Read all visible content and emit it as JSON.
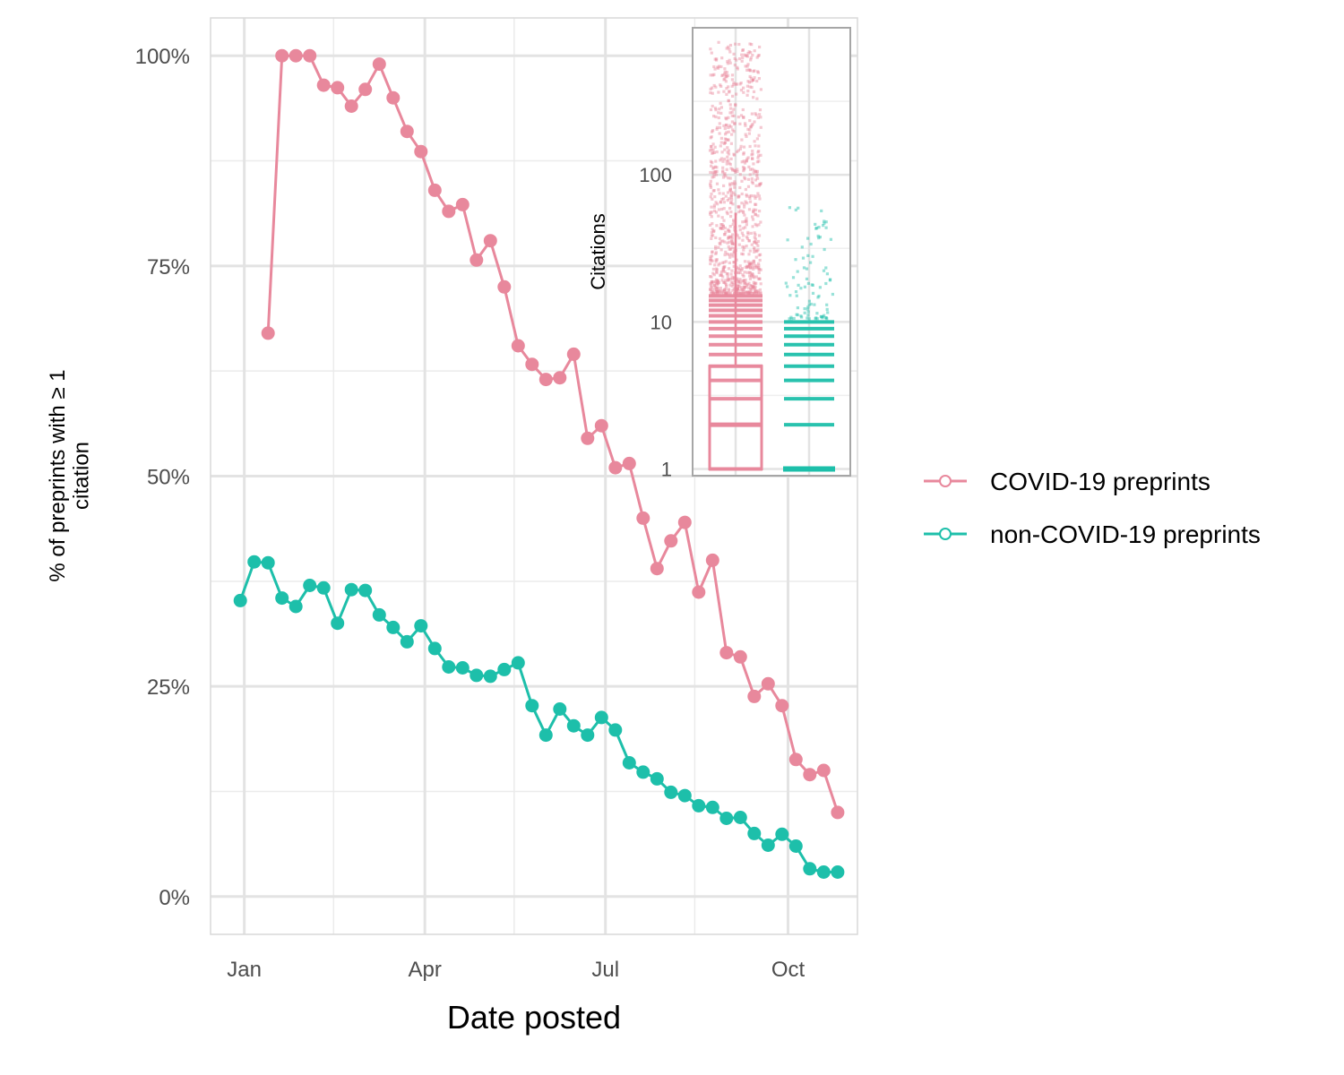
{
  "chart_data": [
    {
      "type": "line",
      "title": "",
      "xlabel": "Date posted",
      "ylabel": "% of preprints with ≥ 1 citation",
      "x_ticks": [
        "Jan",
        "Apr",
        "Jul",
        "Oct"
      ],
      "y_ticks": [
        "0%",
        "25%",
        "50%",
        "75%",
        "100%"
      ],
      "ylim": [
        -4.5,
        104.5
      ],
      "grid": true,
      "legend_position": "right",
      "series": [
        {
          "name": "COVID-19 preprints",
          "color": "#E8889C",
          "points": [
            [
              "2020-01-13",
              67
            ],
            [
              "2020-01-20",
              100
            ],
            [
              "2020-01-27",
              100
            ],
            [
              "2020-02-03",
              100
            ],
            [
              "2020-02-10",
              96.5
            ],
            [
              "2020-02-17",
              96.2
            ],
            [
              "2020-02-24",
              94
            ],
            [
              "2020-03-02",
              96
            ],
            [
              "2020-03-09",
              99
            ],
            [
              "2020-03-16",
              95
            ],
            [
              "2020-03-23",
              91
            ],
            [
              "2020-03-30",
              88.6
            ],
            [
              "2020-04-06",
              84
            ],
            [
              "2020-04-13",
              81.5
            ],
            [
              "2020-04-20",
              82.3
            ],
            [
              "2020-04-27",
              75.7
            ],
            [
              "2020-05-04",
              78
            ],
            [
              "2020-05-11",
              72.5
            ],
            [
              "2020-05-18",
              65.5
            ],
            [
              "2020-05-25",
              63.3
            ],
            [
              "2020-06-01",
              61.5
            ],
            [
              "2020-06-08",
              61.7
            ],
            [
              "2020-06-15",
              64.5
            ],
            [
              "2020-06-22",
              54.5
            ],
            [
              "2020-06-29",
              56
            ],
            [
              "2020-07-06",
              51
            ],
            [
              "2020-07-13",
              51.5
            ],
            [
              "2020-07-20",
              45
            ],
            [
              "2020-07-27",
              39
            ],
            [
              "2020-08-03",
              42.3
            ],
            [
              "2020-08-10",
              44.5
            ],
            [
              "2020-08-17",
              36.2
            ],
            [
              "2020-08-24",
              40
            ],
            [
              "2020-08-31",
              29
            ],
            [
              "2020-09-07",
              28.5
            ],
            [
              "2020-09-14",
              23.8
            ],
            [
              "2020-09-21",
              25.3
            ],
            [
              "2020-09-28",
              22.7
            ],
            [
              "2020-10-05",
              16.3
            ],
            [
              "2020-10-12",
              14.5
            ],
            [
              "2020-10-19",
              15
            ],
            [
              "2020-10-26",
              10
            ]
          ]
        },
        {
          "name": "non-COVID-19 preprints",
          "color": "#1DBFAA",
          "points": [
            [
              "2019-12-30",
              35.2
            ],
            [
              "2020-01-06",
              39.8
            ],
            [
              "2020-01-13",
              39.7
            ],
            [
              "2020-01-20",
              35.5
            ],
            [
              "2020-01-27",
              34.5
            ],
            [
              "2020-02-03",
              37
            ],
            [
              "2020-02-10",
              36.7
            ],
            [
              "2020-02-17",
              32.5
            ],
            [
              "2020-02-24",
              36.5
            ],
            [
              "2020-03-02",
              36.4
            ],
            [
              "2020-03-09",
              33.5
            ],
            [
              "2020-03-16",
              32
            ],
            [
              "2020-03-23",
              30.3
            ],
            [
              "2020-03-30",
              32.2
            ],
            [
              "2020-04-06",
              29.5
            ],
            [
              "2020-04-13",
              27.3
            ],
            [
              "2020-04-20",
              27.2
            ],
            [
              "2020-04-27",
              26.3
            ],
            [
              "2020-05-04",
              26.2
            ],
            [
              "2020-05-11",
              27
            ],
            [
              "2020-05-18",
              27.8
            ],
            [
              "2020-05-25",
              22.7
            ],
            [
              "2020-06-01",
              19.2
            ],
            [
              "2020-06-08",
              22.3
            ],
            [
              "2020-06-15",
              20.3
            ],
            [
              "2020-06-22",
              19.2
            ],
            [
              "2020-06-29",
              21.3
            ],
            [
              "2020-07-06",
              19.8
            ],
            [
              "2020-07-13",
              15.9
            ],
            [
              "2020-07-20",
              14.8
            ],
            [
              "2020-07-27",
              14
            ],
            [
              "2020-08-03",
              12.4
            ],
            [
              "2020-08-10",
              12
            ],
            [
              "2020-08-17",
              10.8
            ],
            [
              "2020-08-24",
              10.6
            ],
            [
              "2020-08-31",
              9.3
            ],
            [
              "2020-09-07",
              9.4
            ],
            [
              "2020-09-14",
              7.5
            ],
            [
              "2020-09-21",
              6.1
            ],
            [
              "2020-09-28",
              7.4
            ],
            [
              "2020-10-05",
              6
            ],
            [
              "2020-10-12",
              3.3
            ],
            [
              "2020-10-19",
              2.9
            ],
            [
              "2020-10-26",
              2.9
            ]
          ]
        }
      ]
    },
    {
      "type": "box",
      "title": "",
      "ylabel": "Citations",
      "y_scale": "log10",
      "y_ticks": [
        "1",
        "10",
        "100"
      ],
      "ylim": [
        0.9,
        1000
      ],
      "categories": [
        "COVID-19 preprints",
        "non-COVID-19 preprints"
      ],
      "groups": [
        {
          "name": "COVID-19 preprints",
          "color": "#E8889C",
          "box": {
            "q1": 1,
            "median": 2,
            "q3": 5,
            "whisker_high": 55
          },
          "max": 800,
          "levels": [
            1,
            2,
            3,
            4,
            5,
            6,
            7,
            8,
            9,
            10,
            11,
            12,
            13,
            14,
            15
          ]
        },
        {
          "name": "non-COVID-19 preprints",
          "color": "#1DBFAA",
          "box": {
            "q1": 1,
            "median": 1,
            "q3": 1,
            "whisker_high": 1
          },
          "max": 62,
          "levels": [
            1,
            2,
            3,
            4,
            5,
            6,
            7,
            8,
            9,
            10
          ]
        }
      ]
    }
  ]
}
